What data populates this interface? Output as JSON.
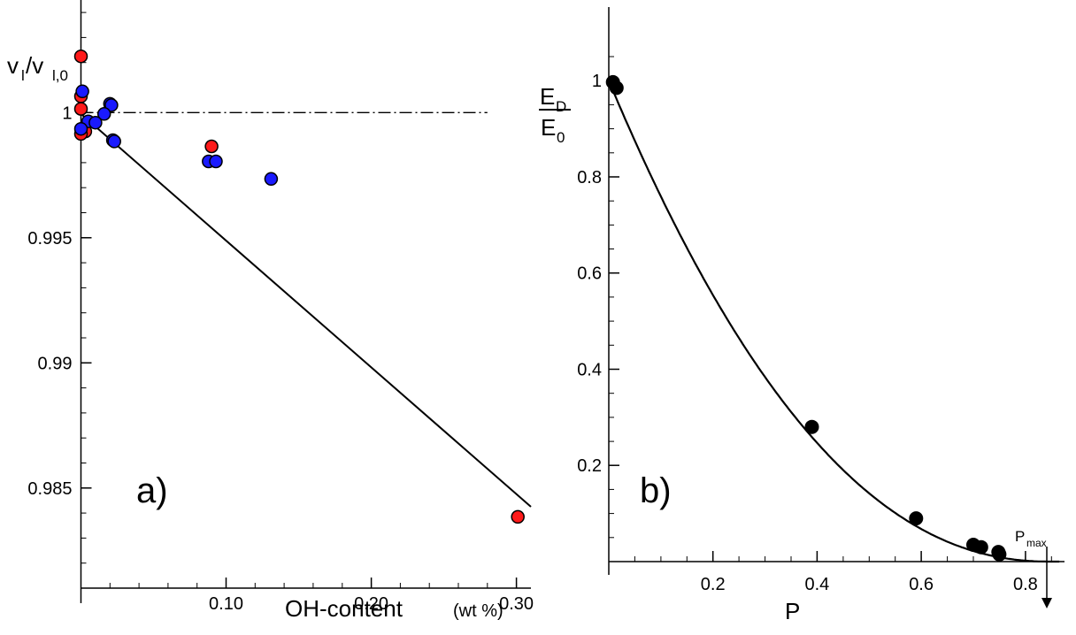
{
  "chart_data": [
    {
      "type": "scatter",
      "panel_label": "a)",
      "xlabel": "OH-content",
      "xlabel_unit": "(wt %)",
      "ylabel_main": "v",
      "ylabel_sub": "l",
      "ylabel_denom": "/v",
      "ylabel_denom_sub": "l,0",
      "xlim": [
        -0.007,
        0.31
      ],
      "ylim": [
        0.981,
        1.0045
      ],
      "xticks": [
        0.1,
        0.2,
        0.3
      ],
      "xtick_labels": [
        "0.10",
        "0.20",
        "0.30"
      ],
      "yticks": [
        0.985,
        0.99,
        0.995,
        1.0
      ],
      "ytick_labels": [
        "0.985",
        "0.99",
        "0.995",
        "1"
      ],
      "grid": false,
      "reference_line": {
        "y": 1.0,
        "x_range": [
          0.0,
          0.28
        ],
        "style": "dash-dot"
      },
      "fit_line": {
        "x": [
          0.0,
          0.31
        ],
        "y": [
          0.99995,
          0.98425
        ]
      },
      "series": [
        {
          "color": "#ff1a1a",
          "points": [
            {
              "x": 0.0,
              "y": 1.00225
            },
            {
              "x": 0.0,
              "y": 1.00065
            },
            {
              "x": 0.0,
              "y": 1.00015
            },
            {
              "x": 0.003,
              "y": 0.99925
            },
            {
              "x": 0.0,
              "y": 0.99915
            },
            {
              "x": 0.09,
              "y": 0.99865
            },
            {
              "x": 0.301,
              "y": 0.98385
            }
          ]
        },
        {
          "color": "#1a1aff",
          "points": [
            {
              "x": 0.001,
              "y": 1.00085
            },
            {
              "x": 0.02,
              "y": 1.00035
            },
            {
              "x": 0.021,
              "y": 1.0003
            },
            {
              "x": 0.016,
              "y": 0.99995
            },
            {
              "x": 0.005,
              "y": 0.99965
            },
            {
              "x": 0.01,
              "y": 0.9996
            },
            {
              "x": 0.0,
              "y": 0.99935
            },
            {
              "x": 0.022,
              "y": 0.9989
            },
            {
              "x": 0.023,
              "y": 0.99885
            },
            {
              "x": 0.088,
              "y": 0.99805
            },
            {
              "x": 0.093,
              "y": 0.99805
            },
            {
              "x": 0.131,
              "y": 0.99735
            }
          ]
        }
      ]
    },
    {
      "type": "line",
      "panel_label": "b)",
      "xlabel": "P",
      "ylabel_num": "E",
      "ylabel_num_sub": "D",
      "ylabel_den": "E",
      "ylabel_den_sub": "0",
      "xlim": [
        0.0,
        0.875
      ],
      "ylim": [
        0.0,
        1.085
      ],
      "xticks": [
        0.2,
        0.4,
        0.6,
        0.8
      ],
      "xtick_labels": [
        "0.2",
        "0.4",
        "0.6",
        "0.8"
      ],
      "yticks": [
        0.2,
        0.4,
        0.6,
        0.8,
        1.0
      ],
      "ytick_labels": [
        "0.2",
        "0.4",
        "0.6",
        "0.8",
        "1"
      ],
      "grid": false,
      "curve": {
        "p_max": 0.85,
        "exponent": 2.2,
        "x_start": 0.01
      },
      "annotation": {
        "text": "P",
        "sub": "max",
        "x": 0.85
      },
      "points": [
        {
          "x": 0.008,
          "y": 0.997
        },
        {
          "x": 0.015,
          "y": 0.985
        },
        {
          "x": 0.39,
          "y": 0.28
        },
        {
          "x": 0.59,
          "y": 0.09
        },
        {
          "x": 0.7,
          "y": 0.035
        },
        {
          "x": 0.715,
          "y": 0.03
        },
        {
          "x": 0.748,
          "y": 0.02
        },
        {
          "x": 0.75,
          "y": 0.015
        }
      ]
    }
  ]
}
